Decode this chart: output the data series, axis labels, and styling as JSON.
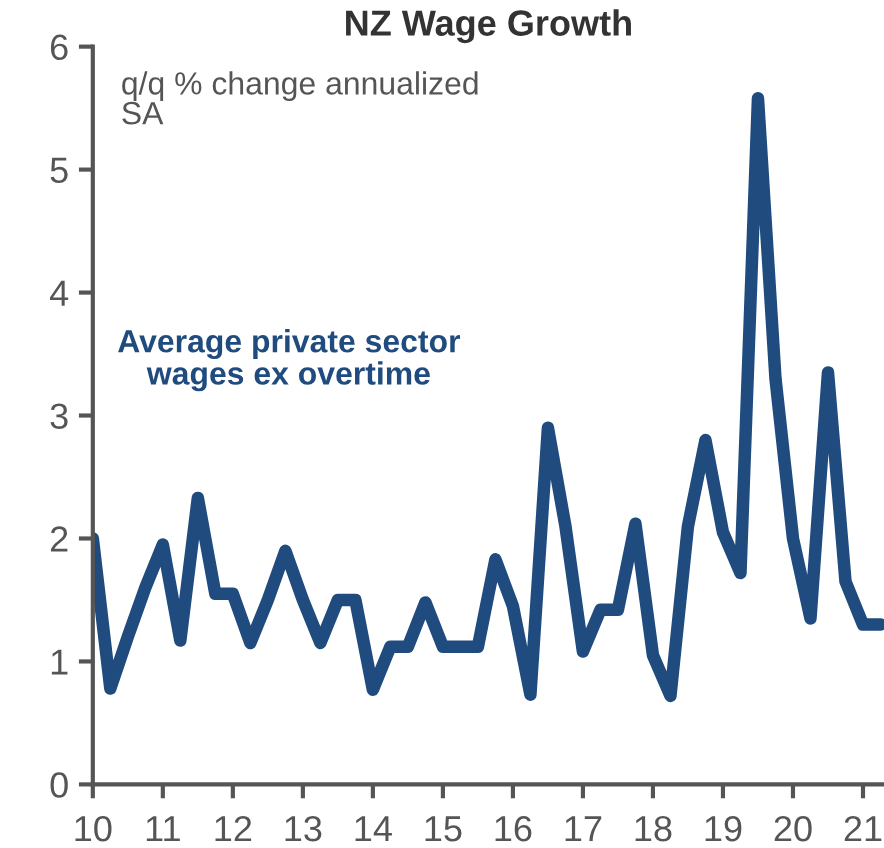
{
  "chart_data": {
    "type": "line",
    "title": "NZ Wage Growth",
    "annotations": [
      "q/q % change annualized\nSA"
    ],
    "x": [
      2010.0,
      2010.25,
      2010.5,
      2010.75,
      2011.0,
      2011.25,
      2011.5,
      2011.75,
      2012.0,
      2012.25,
      2012.5,
      2012.75,
      2013.0,
      2013.25,
      2013.5,
      2013.75,
      2014.0,
      2014.25,
      2014.5,
      2014.75,
      2015.0,
      2015.25,
      2015.5,
      2015.75,
      2016.0,
      2016.25,
      2016.5,
      2016.75,
      2017.0,
      2017.25,
      2017.5,
      2017.75,
      2018.0,
      2018.25,
      2018.5,
      2018.75,
      2019.0,
      2019.25,
      2019.5,
      2019.75,
      2020.0,
      2020.25,
      2020.5,
      2020.75,
      2021.0,
      2021.25
    ],
    "series": [
      {
        "name": "Average private sector\nwages ex overtime",
        "color": "#1f4b7e",
        "values": [
          2.0,
          0.78,
          1.2,
          1.6,
          1.95,
          1.17,
          2.33,
          1.55,
          1.55,
          1.15,
          1.5,
          1.9,
          1.5,
          1.15,
          1.5,
          1.5,
          0.77,
          1.12,
          1.12,
          1.48,
          1.12,
          1.12,
          1.12,
          1.83,
          1.45,
          0.73,
          2.9,
          2.1,
          1.08,
          1.42,
          1.42,
          2.12,
          1.05,
          0.72,
          2.1,
          2.8,
          2.05,
          1.72,
          5.58,
          3.3,
          2.0,
          1.35,
          3.35,
          1.65,
          1.3,
          1.3
        ]
      }
    ],
    "xlim": [
      2010,
      2021.3
    ],
    "ylim": [
      0,
      6
    ],
    "xticks": [
      {
        "value": 2010,
        "label": "10"
      },
      {
        "value": 2011,
        "label": "11"
      },
      {
        "value": 2012,
        "label": "12"
      },
      {
        "value": 2013,
        "label": "13"
      },
      {
        "value": 2014,
        "label": "14"
      },
      {
        "value": 2015,
        "label": "15"
      },
      {
        "value": 2016,
        "label": "16"
      },
      {
        "value": 2017,
        "label": "17"
      },
      {
        "value": 2018,
        "label": "18"
      },
      {
        "value": 2019,
        "label": "19"
      },
      {
        "value": 2020,
        "label": "20"
      },
      {
        "value": 2021,
        "label": "21"
      }
    ],
    "yticks": [
      0,
      1,
      2,
      3,
      4,
      5,
      6
    ],
    "grid": false,
    "legend": false,
    "marker": "none",
    "line_style": "solid"
  }
}
